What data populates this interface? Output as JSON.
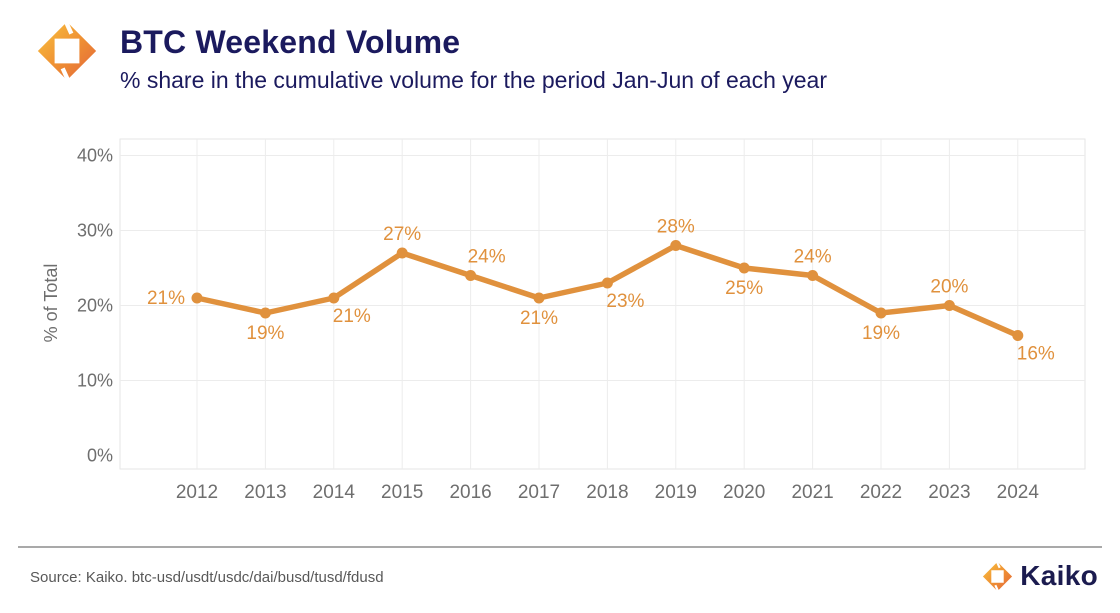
{
  "header": {
    "title": "BTC Weekend Volume",
    "subtitle": "% share in the cumulative volume for the period Jan-Jun of each year"
  },
  "chart_data": {
    "type": "line",
    "title": "BTC Weekend Volume",
    "subtitle": "% share in the cumulative volume for the period Jan-Jun of each year",
    "categories": [
      "2012",
      "2013",
      "2014",
      "2015",
      "2016",
      "2017",
      "2018",
      "2019",
      "2020",
      "2021",
      "2022",
      "2023",
      "2024"
    ],
    "values": [
      21,
      19,
      21,
      27,
      24,
      21,
      23,
      28,
      25,
      24,
      19,
      20,
      16
    ],
    "unit": "%",
    "xlabel": "",
    "ylabel": "% of Total",
    "yticks": [
      0,
      10,
      20,
      30,
      40
    ],
    "ytick_labels": [
      "0%",
      "10%",
      "20%",
      "30%",
      "40%"
    ],
    "ylim": [
      -2,
      42.2
    ],
    "grid": true,
    "legend": "none",
    "label_positions": [
      "left",
      "below",
      "below-right",
      "above",
      "above-right",
      "below",
      "below-right",
      "above",
      "below",
      "above",
      "below",
      "above",
      "below-right"
    ]
  },
  "footer": {
    "source": "Source: Kaiko. btc-usd/usdt/usdc/dai/busd/tusd/fdusd",
    "brand": "Kaiko"
  },
  "colors": {
    "line": "#e0913d",
    "data_label": "#e0913d",
    "title_navy": "#1b1a5e",
    "tick_gray": "#6e6e6e",
    "grid": "#ececec",
    "border": "#e6e6e6",
    "logo_yellow": "#f9c33e",
    "logo_orange": "#ee8d33",
    "logo_red": "#e2643b"
  }
}
